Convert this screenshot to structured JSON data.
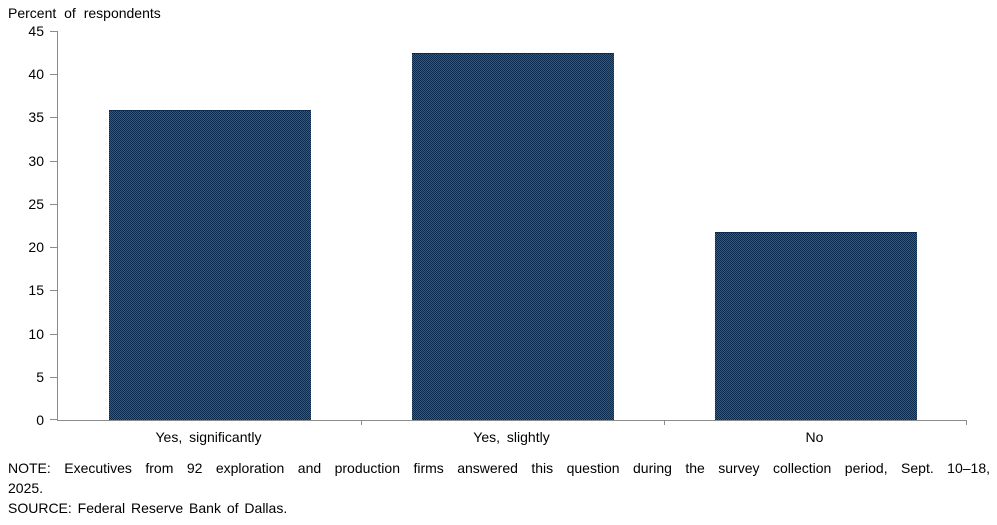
{
  "chart_data": {
    "type": "bar",
    "title": "Percent of respondents",
    "categories": [
      "Yes, significantly",
      "Yes, slightly",
      "No"
    ],
    "values": [
      35.9,
      42.4,
      21.7
    ],
    "ylabel": "Percent of respondents",
    "ylim": [
      0,
      45
    ],
    "ytick_step": 5,
    "ytick_labels": [
      "0",
      "5",
      "10",
      "15",
      "20",
      "25",
      "30",
      "35",
      "40",
      "45"
    ],
    "grid": false,
    "legend": "none",
    "colors": {
      "bar_fill_primary": "#2853c0",
      "bar_fill_secondary": "#0a2a50",
      "axis": "#8c8c8c",
      "text": "#000000",
      "background": "#ffffff"
    }
  },
  "note": {
    "line1": "NOTE: Executives from 92 exploration and production firms answered this question during the survey collection period, Sept. 10–18,",
    "line2": "2025.",
    "source": "SOURCE: Federal Reserve Bank of Dallas."
  }
}
